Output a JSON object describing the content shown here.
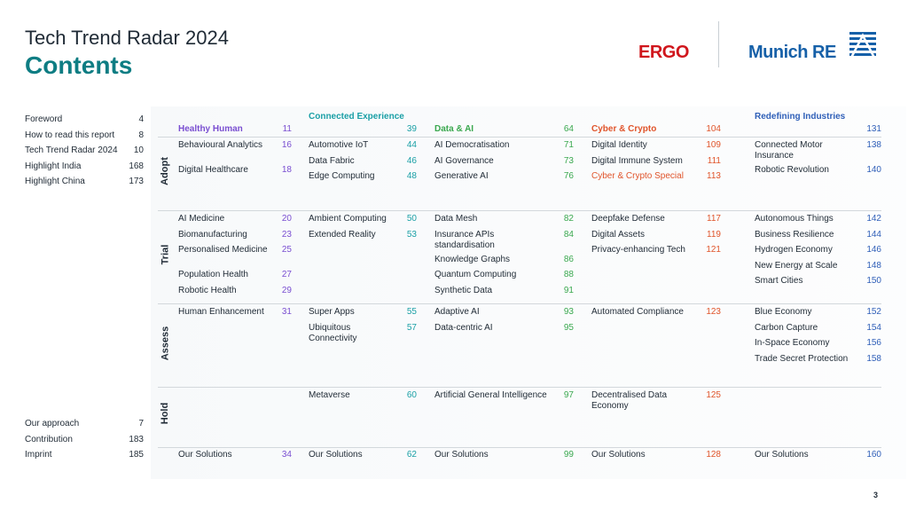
{
  "header": {
    "title": "Tech Trend Radar 2024",
    "subtitle": "Contents"
  },
  "logos": {
    "ergo": "ERGO",
    "munich": "Munich RE"
  },
  "colors": {
    "teal": "#0e7d83",
    "ergo_red": "#d0161c",
    "munich_blue": "#1660a8"
  },
  "toc_top": [
    {
      "label": "Foreword",
      "page": "4"
    },
    {
      "label": "How to read this report",
      "page": "8"
    },
    {
      "label": "Tech Trend Radar 2024",
      "page": "10"
    },
    {
      "label": "Highlight India",
      "page": "168"
    },
    {
      "label": "Highlight China",
      "page": "173"
    }
  ],
  "toc_bottom": [
    {
      "label": "Our approach",
      "page": "7"
    },
    {
      "label": "Contribution",
      "page": "183"
    },
    {
      "label": "Imprint",
      "page": "185"
    }
  ],
  "phases": [
    "Adopt",
    "Trial",
    "Assess",
    "Hold"
  ],
  "columns": [
    {
      "name": "Healthy Human",
      "page": "11",
      "color": "#7a4fd1",
      "cells": [
        [
          {
            "name": "Behavioural Analytics",
            "page": "16"
          },
          {
            "name": "Digital Healthcare",
            "page": "18"
          }
        ],
        [
          {
            "name": "AI Medicine",
            "page": "20"
          },
          {
            "name": "Biomanufacturing",
            "page": "23"
          },
          {
            "name": "Personalised Medicine",
            "page": "25"
          },
          {
            "name": "Population Health",
            "page": "27"
          },
          {
            "name": "Robotic Health",
            "page": "29"
          }
        ],
        [
          {
            "name": "Human Enhancement",
            "page": "31"
          }
        ],
        []
      ],
      "footer": {
        "name": "Our Solutions",
        "page": "34"
      }
    },
    {
      "name": "Connected Experience",
      "page": "39",
      "color": "#1a9fa6",
      "cells": [
        [
          {
            "name": "Automotive IoT",
            "page": "44"
          },
          {
            "name": "Data Fabric",
            "page": "46"
          },
          {
            "name": "Edge Computing",
            "page": "48"
          }
        ],
        [
          {
            "name": "Ambient Computing",
            "page": "50"
          },
          {
            "name": "Extended Reality",
            "page": "53"
          }
        ],
        [
          {
            "name": "Super Apps",
            "page": "55"
          },
          {
            "name": "Ubiquitous Connectivity",
            "page": "57"
          }
        ],
        [
          {
            "name": "Metaverse",
            "page": "60"
          }
        ]
      ],
      "footer": {
        "name": "Our Solutions",
        "page": "62"
      }
    },
    {
      "name": "Data & AI",
      "page": "64",
      "color": "#3aa84f",
      "cells": [
        [
          {
            "name": "AI Democratisation",
            "page": "71"
          },
          {
            "name": "AI Governance",
            "page": "73"
          },
          {
            "name": "Generative AI",
            "page": "76"
          }
        ],
        [
          {
            "name": "Data Mesh",
            "page": "82"
          },
          {
            "name": "Insurance APIs standardisation",
            "page": "84"
          },
          {
            "name": "Knowledge Graphs",
            "page": "86"
          },
          {
            "name": "Quantum Computing",
            "page": "88"
          },
          {
            "name": "Synthetic Data",
            "page": "91"
          }
        ],
        [
          {
            "name": "Adaptive AI",
            "page": "93"
          },
          {
            "name": "Data-centric AI",
            "page": "95"
          }
        ],
        [
          {
            "name": "Artificial General Intelligence",
            "page": "97"
          }
        ]
      ],
      "footer": {
        "name": "Our Solutions",
        "page": "99"
      }
    },
    {
      "name": "Cyber & Crypto",
      "page": "104",
      "color": "#e0552b",
      "cells": [
        [
          {
            "name": "Digital Identity",
            "page": "109"
          },
          {
            "name": "Digital Immune System",
            "page": "111"
          },
          {
            "name": "Cyber & Crypto Special",
            "page": "113"
          }
        ],
        [
          {
            "name": "Deepfake Defense",
            "page": "117"
          },
          {
            "name": "Digital Assets",
            "page": "119"
          },
          {
            "name": "Privacy-enhancing Tech",
            "page": "121"
          }
        ],
        [
          {
            "name": "Automated Compliance",
            "page": "123"
          }
        ],
        [
          {
            "name": "Decentralised Data Economy",
            "page": "125"
          }
        ]
      ],
      "footer": {
        "name": "Our Solutions",
        "page": "128"
      }
    },
    {
      "name": "Redefining Industries",
      "page": "131",
      "color": "#2f5fb8",
      "cells": [
        [
          {
            "name": "Connected Motor Insurance",
            "page": "138"
          },
          {
            "name": "Robotic Revolution",
            "page": "140"
          }
        ],
        [
          {
            "name": "Autonomous Things",
            "page": "142"
          },
          {
            "name": "Business Resilience",
            "page": "144"
          },
          {
            "name": "Hydrogen Economy",
            "page": "146"
          },
          {
            "name": "New Energy at Scale",
            "page": "148"
          },
          {
            "name": "Smart Cities",
            "page": "150"
          }
        ],
        [
          {
            "name": "Blue Economy",
            "page": "152"
          },
          {
            "name": "Carbon Capture",
            "page": "154"
          },
          {
            "name": "In-Space Economy",
            "page": "156"
          },
          {
            "name": "Trade Secret Protection",
            "page": "158"
          }
        ],
        []
      ],
      "footer": {
        "name": "Our Solutions",
        "page": "160"
      }
    }
  ],
  "page_number": "3"
}
